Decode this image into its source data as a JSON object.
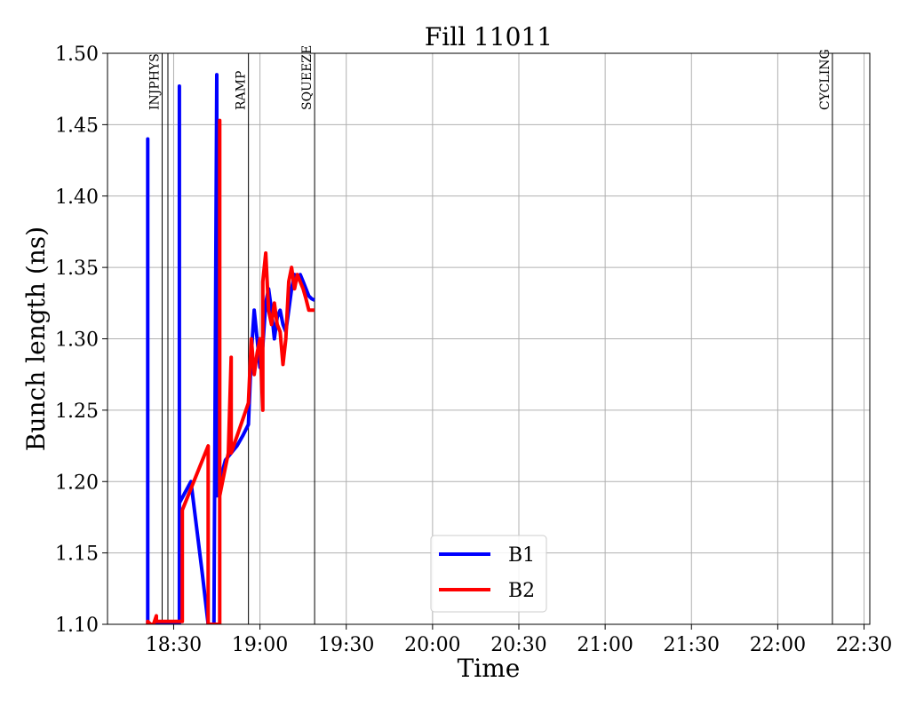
{
  "chart_data": {
    "type": "line",
    "title": "Fill 11011",
    "xlabel": "Time",
    "ylabel": "Bunch length (ns)",
    "xlim": [
      "18:07",
      "22:32"
    ],
    "ylim": [
      1.1,
      1.5
    ],
    "grid": true,
    "legend_position": "lower-center",
    "x_ticks": [
      "18:30",
      "19:00",
      "19:30",
      "20:00",
      "20:30",
      "21:00",
      "21:30",
      "22:00",
      "22:30"
    ],
    "y_ticks": [
      "1.10",
      "1.15",
      "1.20",
      "1.25",
      "1.30",
      "1.35",
      "1.40",
      "1.45",
      "1.50"
    ],
    "phases": [
      {
        "label": "INJPHYS",
        "time": "18:26"
      },
      {
        "label": "RAMP",
        "time": "18:56"
      },
      {
        "label": "SQUEEZE",
        "time": "19:19"
      },
      {
        "label": "CYCLING",
        "time": "22:19"
      }
    ],
    "phase_extra_lines": [
      "18:28"
    ],
    "series": [
      {
        "name": "B1",
        "color": "#0000ff",
        "points": [
          [
            "18:21",
            1.1
          ],
          [
            "18:21",
            1.44
          ],
          [
            "18:21",
            1.1
          ],
          [
            "18:32",
            1.1
          ],
          [
            "18:32",
            1.477
          ],
          [
            "18:32",
            1.185
          ],
          [
            "18:36",
            1.2
          ],
          [
            "18:40",
            1.135
          ],
          [
            "18:42",
            1.1
          ],
          [
            "18:44",
            1.1
          ],
          [
            "18:45",
            1.485
          ],
          [
            "18:45",
            1.19
          ],
          [
            "18:46",
            1.2
          ],
          [
            "18:48",
            1.215
          ],
          [
            "18:50",
            1.22
          ],
          [
            "18:52",
            1.225
          ],
          [
            "18:54",
            1.232
          ],
          [
            "18:56",
            1.24
          ],
          [
            "18:57",
            1.29
          ],
          [
            "18:58",
            1.32
          ],
          [
            "18:59",
            1.3
          ],
          [
            "19:00",
            1.28
          ],
          [
            "19:01",
            1.295
          ],
          [
            "19:02",
            1.325
          ],
          [
            "19:03",
            1.335
          ],
          [
            "19:04",
            1.32
          ],
          [
            "19:05",
            1.3
          ],
          [
            "19:06",
            1.315
          ],
          [
            "19:07",
            1.32
          ],
          [
            "19:08",
            1.31
          ],
          [
            "19:09",
            1.305
          ],
          [
            "19:10",
            1.32
          ],
          [
            "19:11",
            1.335
          ],
          [
            "19:12",
            1.345
          ],
          [
            "19:13",
            1.342
          ],
          [
            "19:14",
            1.345
          ],
          [
            "19:15",
            1.34
          ],
          [
            "19:16",
            1.335
          ],
          [
            "19:17",
            1.33
          ],
          [
            "19:18",
            1.328
          ],
          [
            "19:19",
            1.327
          ]
        ]
      },
      {
        "name": "B2",
        "color": "#ff0000",
        "points": [
          [
            "18:21",
            1.1
          ],
          [
            "18:21",
            1.102
          ],
          [
            "18:22",
            1.1
          ],
          [
            "18:23",
            1.1
          ],
          [
            "18:24",
            1.106
          ],
          [
            "18:24",
            1.102
          ],
          [
            "18:33",
            1.102
          ],
          [
            "18:33",
            1.18
          ],
          [
            "18:42",
            1.225
          ],
          [
            "18:42",
            1.1
          ],
          [
            "18:46",
            1.1
          ],
          [
            "18:46",
            1.453
          ],
          [
            "18:46",
            1.19
          ],
          [
            "18:48",
            1.21
          ],
          [
            "18:49",
            1.22
          ],
          [
            "18:50",
            1.287
          ],
          [
            "18:50",
            1.22
          ],
          [
            "18:56",
            1.255
          ],
          [
            "18:57",
            1.3
          ],
          [
            "18:58",
            1.275
          ],
          [
            "18:59",
            1.29
          ],
          [
            "19:00",
            1.3
          ],
          [
            "19:01",
            1.25
          ],
          [
            "19:01",
            1.34
          ],
          [
            "19:02",
            1.36
          ],
          [
            "19:03",
            1.32
          ],
          [
            "19:04",
            1.31
          ],
          [
            "19:05",
            1.325
          ],
          [
            "19:06",
            1.31
          ],
          [
            "19:07",
            1.305
          ],
          [
            "19:08",
            1.282
          ],
          [
            "19:09",
            1.3
          ],
          [
            "19:10",
            1.34
          ],
          [
            "19:11",
            1.35
          ],
          [
            "19:12",
            1.335
          ],
          [
            "19:13",
            1.345
          ],
          [
            "19:14",
            1.34
          ],
          [
            "19:15",
            1.335
          ],
          [
            "19:16",
            1.328
          ],
          [
            "19:17",
            1.32
          ],
          [
            "19:18",
            1.32
          ],
          [
            "19:19",
            1.32
          ]
        ]
      }
    ]
  }
}
